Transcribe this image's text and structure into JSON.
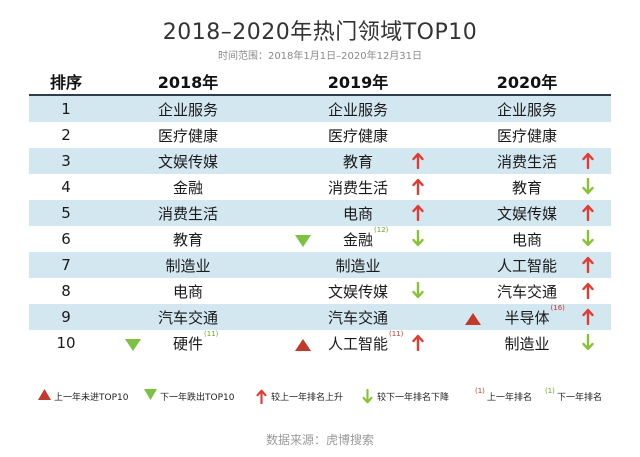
{
  "header": {
    "title": "2018–2020年热门领域TOP10",
    "subtitle": "时间范围：2018年1月1日–2020年12月31日"
  },
  "table": {
    "columns": [
      "排序",
      "2018年",
      "2019年",
      "2020年"
    ],
    "rows": [
      {
        "rank": "1",
        "y2018": {
          "name": "企业服务"
        },
        "y2019": {
          "name": "企业服务"
        },
        "y2020": {
          "name": "企业服务"
        }
      },
      {
        "rank": "2",
        "y2018": {
          "name": "医疗健康"
        },
        "y2019": {
          "name": "医疗健康"
        },
        "y2020": {
          "name": "医疗健康"
        }
      },
      {
        "rank": "3",
        "y2018": {
          "name": "文娱传媒"
        },
        "y2019": {
          "name": "教育",
          "arrow": "up"
        },
        "y2020": {
          "name": "消费生活",
          "arrow": "up"
        }
      },
      {
        "rank": "4",
        "y2018": {
          "name": "金融"
        },
        "y2019": {
          "name": "消费生活",
          "arrow": "up"
        },
        "y2020": {
          "name": "教育",
          "arrow": "down"
        }
      },
      {
        "rank": "5",
        "y2018": {
          "name": "消费生活"
        },
        "y2019": {
          "name": "电商",
          "arrow": "up"
        },
        "y2020": {
          "name": "文娱传媒",
          "arrow": "up"
        }
      },
      {
        "rank": "6",
        "y2018": {
          "name": "教育"
        },
        "y2019": {
          "name": "金融",
          "arrow": "down",
          "marker": "green-down",
          "prev_rank": "(12)"
        },
        "y2020": {
          "name": "电商",
          "arrow": "down"
        }
      },
      {
        "rank": "7",
        "y2018": {
          "name": "制造业"
        },
        "y2019": {
          "name": "制造业"
        },
        "y2020": {
          "name": "人工智能",
          "arrow": "up"
        }
      },
      {
        "rank": "8",
        "y2018": {
          "name": "电商"
        },
        "y2019": {
          "name": "文娱传媒",
          "arrow": "down"
        },
        "y2020": {
          "name": "汽车交通",
          "arrow": "up"
        }
      },
      {
        "rank": "9",
        "y2018": {
          "name": "汽车交通"
        },
        "y2019": {
          "name": "汽车交通"
        },
        "y2020": {
          "name": "半导体",
          "arrow": "up",
          "marker": "red-up",
          "prev_rank": "(16)"
        }
      },
      {
        "rank": "10",
        "y2018": {
          "name": "硬件",
          "marker": "green-down",
          "prev_rank": "(11)"
        },
        "y2019": {
          "name": "人工智能",
          "arrow": "up",
          "marker": "red-up",
          "prev_rank": "(11)"
        },
        "y2020": {
          "name": "制造业",
          "arrow": "down"
        }
      }
    ]
  },
  "legend": {
    "new_top10": "上一年未进TOP10",
    "drop_top10": "下一年跌出TOP10",
    "rank_up": "较上一年排名上升",
    "rank_down": "较下一年排名下降",
    "prev_rank_red_num": "(1)",
    "prev_rank_red_label": "上一年排名",
    "prev_rank_green_num": "(1)",
    "prev_rank_green_label": "下一年排名"
  },
  "footer": {
    "source": "数据来源：虎博搜索"
  },
  "colors": {
    "row_shade": "#d3e7f0",
    "header_rule": "#2f3e4a",
    "arrow_up": "#e03c31",
    "arrow_down": "#86c232",
    "triangle_up": "#c0392b",
    "triangle_down": "#7dc142"
  }
}
